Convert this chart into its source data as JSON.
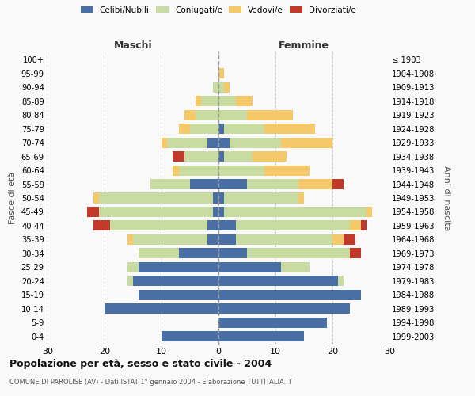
{
  "age_groups": [
    "0-4",
    "5-9",
    "10-14",
    "15-19",
    "20-24",
    "25-29",
    "30-34",
    "35-39",
    "40-44",
    "45-49",
    "50-54",
    "55-59",
    "60-64",
    "65-69",
    "70-74",
    "75-79",
    "80-84",
    "85-89",
    "90-94",
    "95-99",
    "100+"
  ],
  "birth_years": [
    "1999-2003",
    "1994-1998",
    "1989-1993",
    "1984-1988",
    "1979-1983",
    "1974-1978",
    "1969-1973",
    "1964-1968",
    "1959-1963",
    "1954-1958",
    "1949-1953",
    "1944-1948",
    "1939-1943",
    "1934-1938",
    "1929-1933",
    "1924-1928",
    "1919-1923",
    "1914-1918",
    "1909-1913",
    "1904-1908",
    "≤ 1903"
  ],
  "maschi": {
    "celibi": [
      10,
      0,
      20,
      14,
      15,
      14,
      7,
      2,
      2,
      1,
      1,
      5,
      0,
      0,
      2,
      0,
      0,
      0,
      0,
      0,
      0
    ],
    "coniugati": [
      0,
      0,
      0,
      0,
      1,
      2,
      7,
      13,
      17,
      20,
      20,
      7,
      7,
      6,
      7,
      5,
      4,
      3,
      1,
      0,
      0
    ],
    "vedovi": [
      0,
      0,
      0,
      0,
      0,
      0,
      0,
      1,
      0,
      0,
      1,
      0,
      1,
      0,
      1,
      2,
      2,
      1,
      0,
      0,
      0
    ],
    "divorziati": [
      0,
      0,
      0,
      0,
      0,
      0,
      0,
      0,
      3,
      2,
      0,
      0,
      0,
      2,
      0,
      0,
      0,
      0,
      0,
      0,
      0
    ]
  },
  "femmine": {
    "nubili": [
      15,
      19,
      23,
      25,
      21,
      11,
      5,
      3,
      3,
      1,
      1,
      5,
      0,
      1,
      2,
      1,
      0,
      0,
      0,
      0,
      0
    ],
    "coniugate": [
      0,
      0,
      0,
      0,
      1,
      5,
      18,
      17,
      20,
      25,
      13,
      9,
      8,
      5,
      9,
      7,
      5,
      3,
      1,
      0,
      0
    ],
    "vedove": [
      0,
      0,
      0,
      0,
      0,
      0,
      0,
      2,
      2,
      1,
      1,
      6,
      8,
      6,
      9,
      9,
      8,
      3,
      1,
      1,
      0
    ],
    "divorziate": [
      0,
      0,
      0,
      0,
      0,
      0,
      2,
      2,
      1,
      0,
      0,
      2,
      0,
      0,
      0,
      0,
      0,
      0,
      0,
      0,
      0
    ]
  },
  "colors": {
    "celibi": "#4a6fa5",
    "coniugati": "#c8dba0",
    "vedovi": "#f5c96a",
    "divorziati": "#c0392b"
  },
  "title": "Popolazione per età, sesso e stato civile - 2004",
  "subtitle": "COMUNE DI PAROLISE (AV) - Dati ISTAT 1° gennaio 2004 - Elaborazione TUTTITALIA.IT",
  "xlabel_left": "Maschi",
  "xlabel_right": "Femmine",
  "ylabel_left": "Fasce di età",
  "ylabel_right": "Anni di nascita",
  "xlim": 30,
  "bg_color": "#f9f9f9",
  "grid_color": "#cccccc"
}
